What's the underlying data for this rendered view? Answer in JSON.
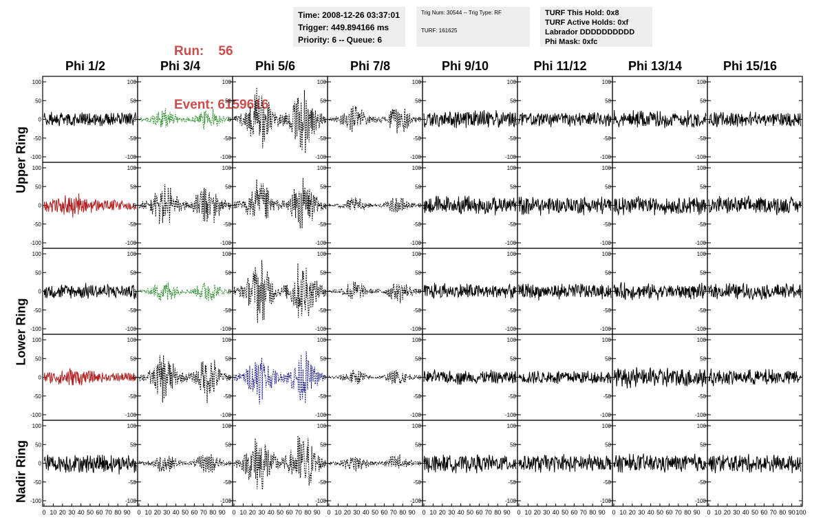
{
  "header": {
    "run_label": "Run:",
    "run_value": "56",
    "event_label": "Event:",
    "event_value": "6159616",
    "time": "Time: 2008-12-26 03:37:01",
    "trigger": "Trigger: 449.894166 ms",
    "priority": "Priority: 6 -- Queue: 6",
    "trig_num": "Trig Num: 30544 -- Trig Type: RF",
    "turf": "TURF: 161625",
    "turf_this_hold": "TURF This Hold: 0x8",
    "turf_active_holds": "TURF Active Holds: 0xf",
    "labrador": "Labrador DDDDDDDDDD",
    "phi_mask": "Phi Mask: 0xfc"
  },
  "columns": [
    "Phi 1/2",
    "Phi 3/4",
    "Phi 5/6",
    "Phi 7/8",
    "Phi 9/10",
    "Phi 11/12",
    "Phi 13/14",
    "Phi 15/16"
  ],
  "rings": [
    "Upper Ring",
    "Lower Ring",
    "Nadir Ring"
  ],
  "colors": {
    "title_red": "#cc4b4b",
    "box_gray": "#eeeeee",
    "trace_black": "#000000",
    "trace_red": "#b22222",
    "trace_green": "#228b22",
    "trace_blue": "#1a1a8c"
  },
  "chart_data": {
    "type": "line",
    "xlim": [
      0,
      100
    ],
    "ylim": [
      -100,
      100
    ],
    "x_tick_labels": [
      "0",
      "10",
      "20",
      "30",
      "40",
      "50",
      "60",
      "70",
      "80",
      "90",
      "100"
    ],
    "y_tick_labels": [
      "100",
      "50",
      "0",
      "-50",
      "-100"
    ],
    "grid": false,
    "panels_rows": 5,
    "panels_cols": 8,
    "row_groups": [
      "Upper Ring",
      "Upper Ring",
      "Lower Ring",
      "Lower Ring",
      "Nadir Ring"
    ],
    "panel_amplitude": [
      [
        15,
        22,
        60,
        28,
        18,
        14,
        18,
        15
      ],
      [
        22,
        45,
        48,
        15,
        18,
        18,
        18,
        18
      ],
      [
        15,
        22,
        60,
        22,
        16,
        16,
        16,
        16
      ],
      [
        18,
        45,
        48,
        15,
        14,
        14,
        20,
        16
      ],
      [
        20,
        20,
        60,
        18,
        18,
        18,
        18,
        18
      ]
    ],
    "panel_style": [
      [
        "solid",
        "dash-green",
        "dash",
        "dash",
        "solid",
        "solid",
        "solid",
        "solid"
      ],
      [
        "solid-red",
        "dash",
        "dash",
        "dash",
        "solid",
        "solid",
        "solid",
        "solid"
      ],
      [
        "solid",
        "dash-green",
        "dash",
        "dash",
        "solid",
        "solid",
        "solid",
        "solid"
      ],
      [
        "solid-red",
        "dash",
        "dash-blue",
        "dash",
        "solid",
        "solid",
        "solid",
        "solid"
      ],
      [
        "solid",
        "dash",
        "dash",
        "dash",
        "solid",
        "solid",
        "solid",
        "solid"
      ]
    ],
    "panel_packet": [
      [
        "flat",
        "burst2",
        "burst2",
        "burst2",
        "flat",
        "flat",
        "flat",
        "flat"
      ],
      [
        "early",
        "burst2",
        "burst2",
        "burst2",
        "flat",
        "flat",
        "flat",
        "flat"
      ],
      [
        "flat",
        "burst2",
        "burst2",
        "burst2",
        "flat",
        "flat",
        "flat",
        "flat"
      ],
      [
        "early",
        "burst2",
        "burst2",
        "burst2",
        "flat",
        "flat",
        "flat",
        "flat"
      ],
      [
        "flat",
        "burst2",
        "burst2",
        "burst2",
        "flat",
        "flat",
        "flat",
        "flat"
      ]
    ]
  }
}
